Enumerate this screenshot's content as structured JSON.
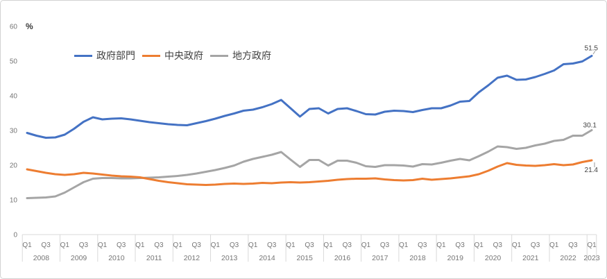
{
  "chart_data": {
    "type": "line",
    "title": "",
    "unit_label": "%",
    "ylim": [
      0,
      60
    ],
    "y_ticks": [
      0,
      10,
      20,
      30,
      40,
      50,
      60
    ],
    "grid": "off",
    "legend_position": "top-left",
    "axis_color": "#d9d9d9",
    "axis_text_color": "#757575",
    "end_label_color": "#404040",
    "x_axis": {
      "frequency": "quarterly",
      "years": [
        "2008",
        "2009",
        "2010",
        "2011",
        "2012",
        "2013",
        "2014",
        "2015",
        "2016",
        "2017",
        "2018",
        "2019",
        "2020",
        "2021",
        "2022",
        "2023"
      ],
      "quarter_labels_per_year": [
        "Q1",
        "Q3"
      ],
      "first_point": "2008 Q1",
      "last_point": "2023 Q1"
    },
    "series": [
      {
        "name": "政府部門",
        "color": "#4472C4",
        "end_label": "51.5",
        "values": [
          29.3,
          28.5,
          27.9,
          28.0,
          28.8,
          30.5,
          32.5,
          33.8,
          33.2,
          33.4,
          33.5,
          33.2,
          32.8,
          32.4,
          32.1,
          31.8,
          31.6,
          31.5,
          32.1,
          32.7,
          33.4,
          34.2,
          34.9,
          35.7,
          36.0,
          36.7,
          37.6,
          38.8,
          36.4,
          34.0,
          36.2,
          36.4,
          34.9,
          36.2,
          36.4,
          35.6,
          34.7,
          34.6,
          35.4,
          35.7,
          35.6,
          35.3,
          35.9,
          36.4,
          36.4,
          37.2,
          38.3,
          38.5,
          41.0,
          43.0,
          45.2,
          45.8,
          44.6,
          44.7,
          45.4,
          46.3,
          47.3,
          49.1,
          49.3,
          49.9,
          51.5
        ]
      },
      {
        "name": "中央政府",
        "color": "#ED7D31",
        "end_label": "21.4",
        "values": [
          18.8,
          18.3,
          17.8,
          17.4,
          17.2,
          17.4,
          17.8,
          17.6,
          17.3,
          17.0,
          16.8,
          16.7,
          16.5,
          16.0,
          15.5,
          15.1,
          14.8,
          14.5,
          14.4,
          14.3,
          14.4,
          14.6,
          14.7,
          14.6,
          14.7,
          14.9,
          14.8,
          15.0,
          15.1,
          15.0,
          15.1,
          15.3,
          15.5,
          15.8,
          16.0,
          16.1,
          16.1,
          16.2,
          15.9,
          15.7,
          15.6,
          15.7,
          16.1,
          15.8,
          16.0,
          16.2,
          16.5,
          16.8,
          17.4,
          18.4,
          19.6,
          20.6,
          20.1,
          19.9,
          19.8,
          20.0,
          20.3,
          20.0,
          20.2,
          20.9,
          21.4
        ]
      },
      {
        "name": "地方政府",
        "color": "#A5A5A5",
        "end_label": "30.1",
        "values": [
          10.5,
          10.6,
          10.7,
          11.0,
          12.1,
          13.6,
          15.1,
          16.1,
          16.3,
          16.3,
          16.2,
          16.2,
          16.3,
          16.4,
          16.5,
          16.7,
          16.9,
          17.2,
          17.6,
          18.1,
          18.6,
          19.2,
          19.9,
          21.0,
          21.8,
          22.4,
          23.0,
          23.8,
          21.6,
          19.5,
          21.5,
          21.5,
          19.9,
          21.3,
          21.3,
          20.7,
          19.7,
          19.5,
          20.0,
          20.0,
          19.9,
          19.6,
          20.3,
          20.2,
          20.7,
          21.3,
          21.8,
          21.4,
          22.6,
          23.9,
          25.4,
          25.2,
          24.7,
          25.0,
          25.7,
          26.2,
          27.0,
          27.3,
          28.5,
          28.5,
          30.1
        ]
      }
    ]
  }
}
